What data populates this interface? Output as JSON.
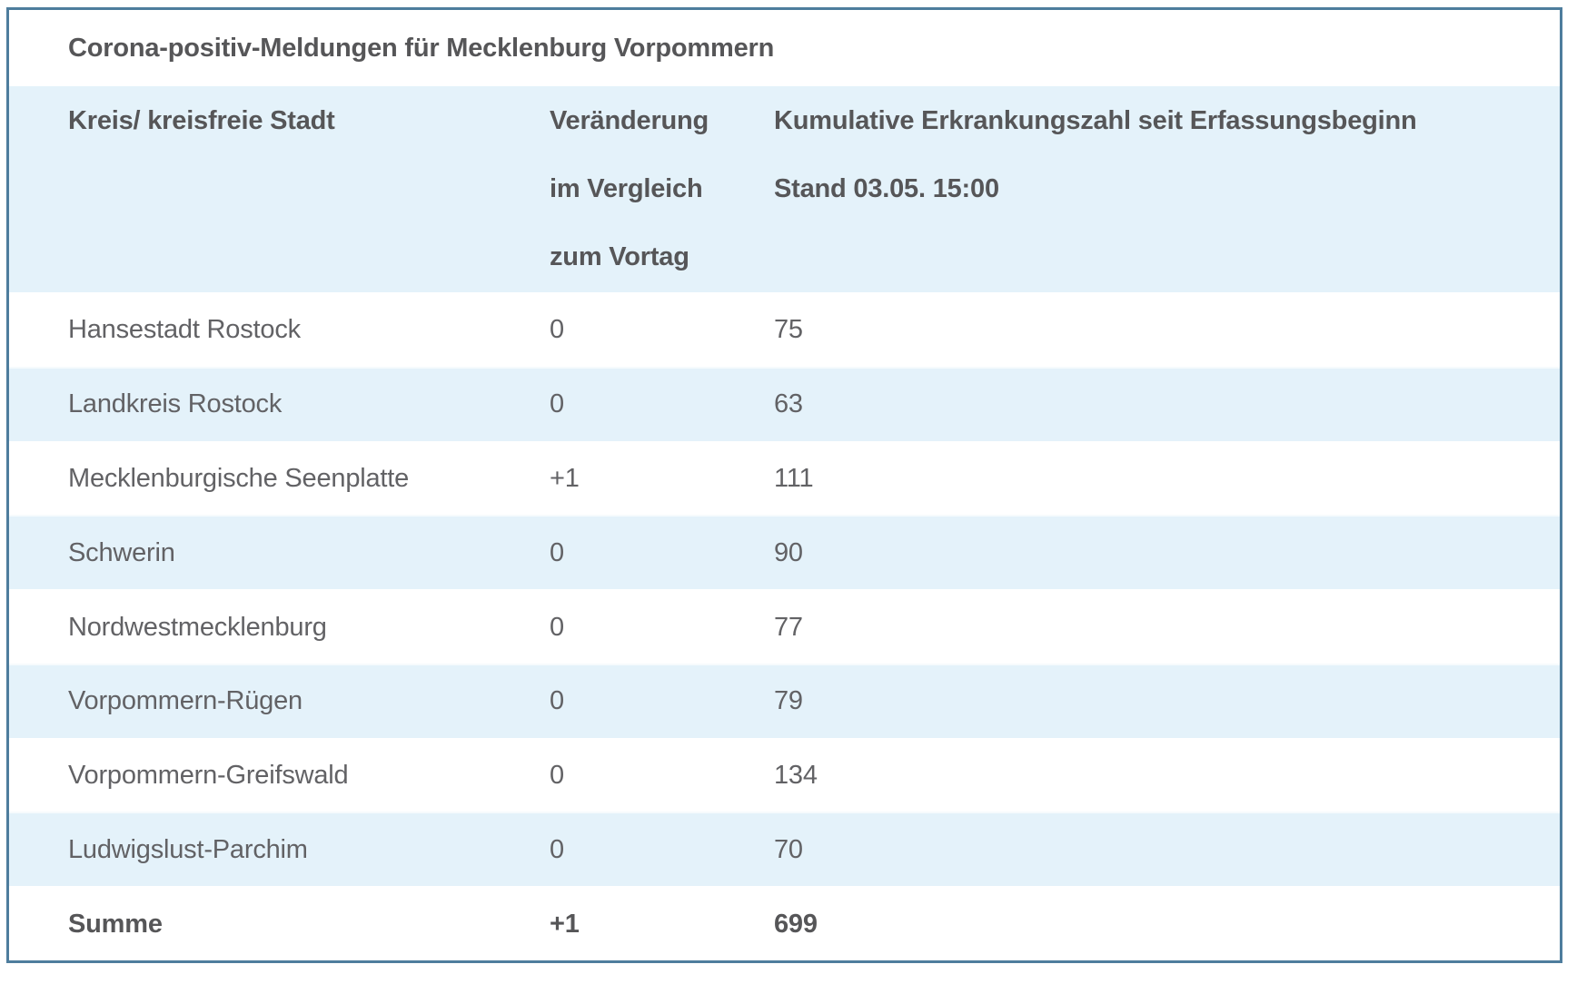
{
  "table": {
    "title": "Corona-positiv-Meldungen für Mecklenburg Vorpommern",
    "columns": [
      {
        "id": "district",
        "lines": [
          "Kreis/ kreisfreie Stadt"
        ]
      },
      {
        "id": "change",
        "lines": [
          "Veränderung",
          "im Vergleich",
          "zum Vortag"
        ]
      },
      {
        "id": "cumulative",
        "lines": [
          "Kumulative Erkrankungszahl seit Erfassungsbeginn",
          "Stand 03.05. 15:00"
        ]
      }
    ],
    "rows": [
      {
        "name": "Hansestadt Rostock",
        "change": "0",
        "cumulative": "75"
      },
      {
        "name": "Landkreis Rostock",
        "change": "0",
        "cumulative": "63"
      },
      {
        "name": "Mecklenburgische Seenplatte",
        "change": "+1",
        "cumulative": "111"
      },
      {
        "name": "Schwerin",
        "change": "0",
        "cumulative": "90"
      },
      {
        "name": "Nordwestmecklenburg",
        "change": "0",
        "cumulative": "77"
      },
      {
        "name": "Vorpommern-Rügen",
        "change": "0",
        "cumulative": "79"
      },
      {
        "name": "Vorpommern-Greifswald",
        "change": "0",
        "cumulative": "134"
      },
      {
        "name": "Ludwigslust-Parchim",
        "change": "0",
        "cumulative": "70"
      }
    ],
    "total": {
      "name": "Summe",
      "change": "+1",
      "cumulative": "699"
    }
  },
  "colors": {
    "border": "#4e7d9d",
    "stripe_blue": "#e4f2fa",
    "row_white": "#ffffff",
    "text_bold": "#565658",
    "text_regular": "#626265"
  },
  "chart_data": {
    "type": "table",
    "title": "Corona-positiv-Meldungen für Mecklenburg Vorpommern",
    "columns": [
      "Kreis/ kreisfreie Stadt",
      "Veränderung im Vergleich zum Vortag",
      "Kumulative Erkrankungszahl seit Erfassungsbeginn Stand 03.05. 15:00"
    ],
    "rows": [
      [
        "Hansestadt Rostock",
        0,
        75
      ],
      [
        "Landkreis Rostock",
        0,
        63
      ],
      [
        "Mecklenburgische Seenplatte",
        1,
        111
      ],
      [
        "Schwerin",
        0,
        90
      ],
      [
        "Nordwestmecklenburg",
        0,
        77
      ],
      [
        "Vorpommern-Rügen",
        0,
        79
      ],
      [
        "Vorpommern-Greifswald",
        0,
        134
      ],
      [
        "Ludwigslust-Parchim",
        0,
        70
      ],
      [
        "Summe",
        1,
        699
      ]
    ],
    "notes": "change column shows 0 or +1 (delta vs previous day); Summe row is bold total"
  }
}
